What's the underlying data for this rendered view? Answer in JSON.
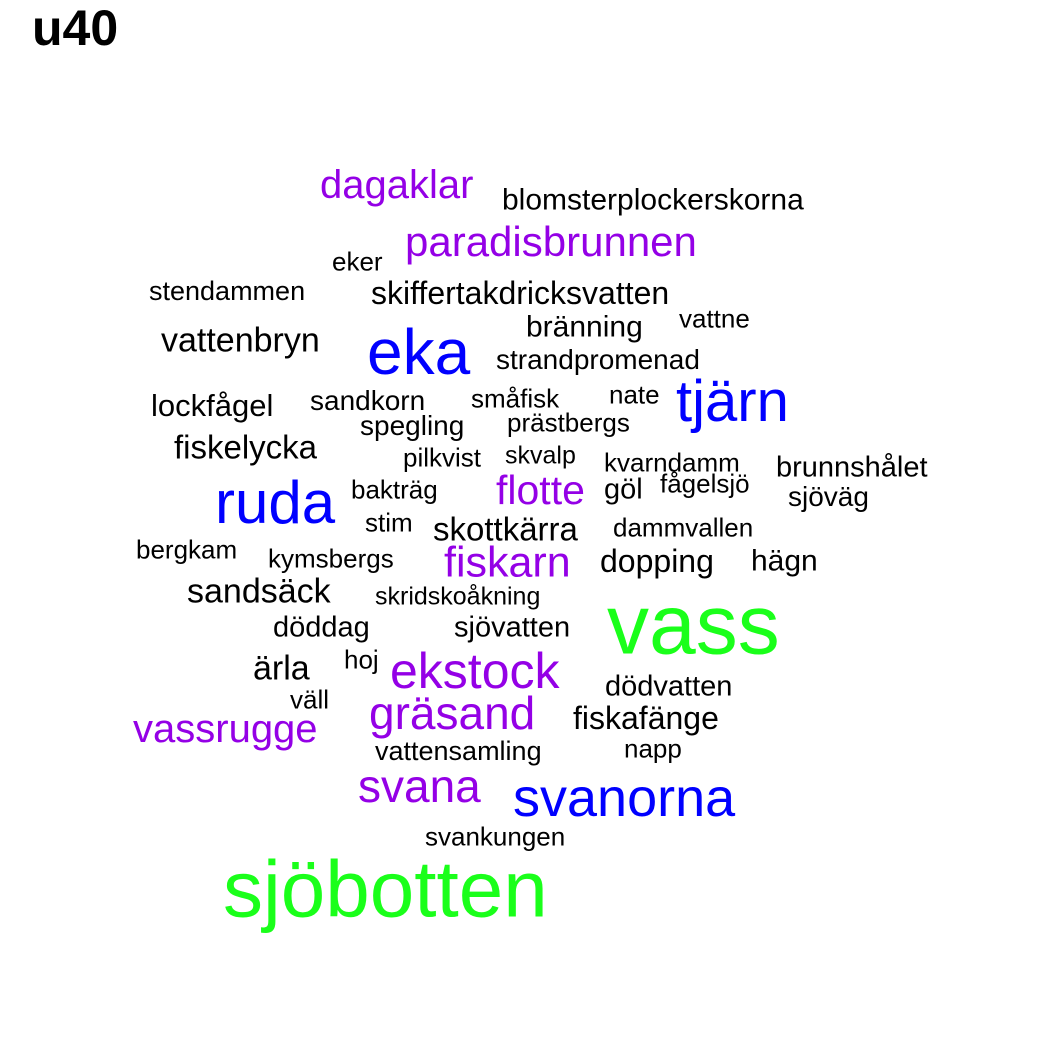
{
  "title": "u40",
  "colors": {
    "black": "#000000",
    "purple": "#9400e6",
    "blue": "#0000ff",
    "green": "#1aff1a"
  },
  "words": [
    {
      "text": "dagaklar",
      "color": "purple"
    },
    {
      "text": "blomsterplockerskorna",
      "color": "black"
    },
    {
      "text": "paradisbrunnen",
      "color": "purple"
    },
    {
      "text": "eker",
      "color": "black"
    },
    {
      "text": "stendammen",
      "color": "black"
    },
    {
      "text": "skiffertakdricksvatten",
      "color": "black"
    },
    {
      "text": "bränning",
      "color": "black"
    },
    {
      "text": "vattne",
      "color": "black"
    },
    {
      "text": "vattenbryn",
      "color": "black"
    },
    {
      "text": "eka",
      "color": "blue"
    },
    {
      "text": "strandpromenad",
      "color": "black"
    },
    {
      "text": "lockfågel",
      "color": "black"
    },
    {
      "text": "sandkorn",
      "color": "black"
    },
    {
      "text": "småfisk",
      "color": "black"
    },
    {
      "text": "nate",
      "color": "black"
    },
    {
      "text": "tjärn",
      "color": "blue"
    },
    {
      "text": "spegling",
      "color": "black"
    },
    {
      "text": "prästbergs",
      "color": "black"
    },
    {
      "text": "fiskelycka",
      "color": "black"
    },
    {
      "text": "pilkvist",
      "color": "black"
    },
    {
      "text": "skvalp",
      "color": "black"
    },
    {
      "text": "kvarndamm",
      "color": "black"
    },
    {
      "text": "brunnshålet",
      "color": "black"
    },
    {
      "text": "ruda",
      "color": "blue"
    },
    {
      "text": "bakträg",
      "color": "black"
    },
    {
      "text": "flotte",
      "color": "purple"
    },
    {
      "text": "göl",
      "color": "black"
    },
    {
      "text": "fågelsjö",
      "color": "black"
    },
    {
      "text": "sjöväg",
      "color": "black"
    },
    {
      "text": "stim",
      "color": "black"
    },
    {
      "text": "skottkärra",
      "color": "black"
    },
    {
      "text": "dammvallen",
      "color": "black"
    },
    {
      "text": "bergkam",
      "color": "black"
    },
    {
      "text": "kymsbergs",
      "color": "black"
    },
    {
      "text": "fiskarn",
      "color": "purple"
    },
    {
      "text": "dopping",
      "color": "black"
    },
    {
      "text": "hägn",
      "color": "black"
    },
    {
      "text": "sandsäck",
      "color": "black"
    },
    {
      "text": "skridskoåkning",
      "color": "black"
    },
    {
      "text": "vass",
      "color": "green"
    },
    {
      "text": "döddag",
      "color": "black"
    },
    {
      "text": "sjövatten",
      "color": "black"
    },
    {
      "text": "ärla",
      "color": "black"
    },
    {
      "text": "hoj",
      "color": "black"
    },
    {
      "text": "ekstock",
      "color": "purple"
    },
    {
      "text": "väll",
      "color": "black"
    },
    {
      "text": "dödvatten",
      "color": "black"
    },
    {
      "text": "gräsand",
      "color": "purple"
    },
    {
      "text": "fiskafänge",
      "color": "black"
    },
    {
      "text": "vassrugge",
      "color": "purple"
    },
    {
      "text": "vattensamling",
      "color": "black"
    },
    {
      "text": "napp",
      "color": "black"
    },
    {
      "text": "svana",
      "color": "purple"
    },
    {
      "text": "svanorna",
      "color": "blue"
    },
    {
      "text": "svankungen",
      "color": "black"
    },
    {
      "text": "sjöbotten",
      "color": "green"
    }
  ]
}
